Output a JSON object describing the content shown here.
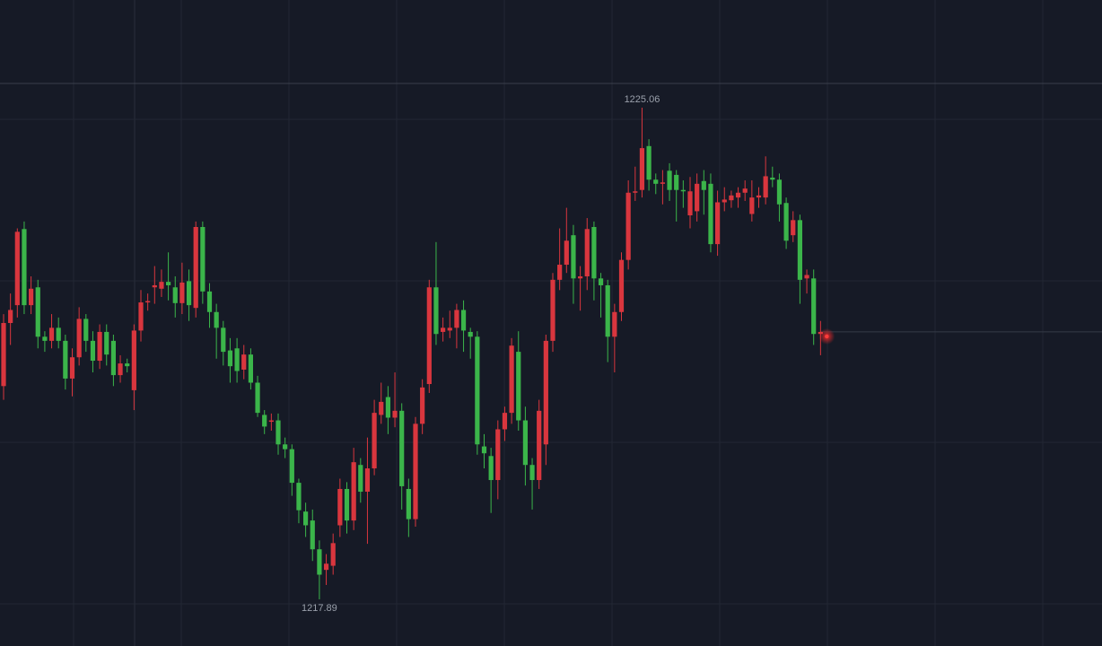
{
  "chart_data": {
    "type": "candlestick",
    "ylim": [
      1217.21,
      1226.63
    ],
    "grid": true,
    "up_color": "#d9363e",
    "down_color": "#3bb54a",
    "open": [
      1221.0,
      1221.92,
      1222.18,
      1223.29,
      1222.18,
      1222.44,
      1221.72,
      1221.66,
      1221.85,
      1221.66,
      1221.11,
      1221.42,
      1221.98,
      1221.66,
      1221.37,
      1221.79,
      1221.66,
      1221.16,
      1221.33,
      1220.94,
      1221.81,
      1222.22,
      1222.44,
      1222.42,
      1222.52,
      1222.44,
      1222.21,
      1222.53,
      1222.14,
      1223.32,
      1222.38,
      1222.08,
      1221.85,
      1221.52,
      1221.55,
      1221.24,
      1221.46,
      1221.05,
      1220.58,
      1220.48,
      1220.5,
      1220.15,
      1220.08,
      1219.59,
      1219.17,
      1219.04,
      1218.62,
      1218.32,
      1218.38,
      1218.97,
      1219.5,
      1219.04,
      1219.85,
      1219.46,
      1219.8,
      1220.58,
      1220.84,
      1220.54,
      1220.64,
      1219.5,
      1219.06,
      1220.45,
      1221.03,
      1222.44,
      1221.79,
      1221.81,
      1221.85,
      1222.11,
      1221.79,
      1221.72,
      1220.12,
      1219.98,
      1219.63,
      1220.37,
      1220.61,
      1221.5,
      1220.5,
      1219.85,
      1219.63,
      1220.15,
      1221.66,
      1222.55,
      1222.77,
      1223.2,
      1222.57,
      1222.6,
      1223.32,
      1222.57,
      1222.47,
      1221.72,
      1222.08,
      1222.84,
      1223.82,
      1223.86,
      1224.5,
      1224.01,
      1223.95,
      1224.14,
      1224.08,
      1223.86,
      1223.49,
      1223.55,
      1223.99,
      1223.95,
      1223.07,
      1223.68,
      1223.71,
      1223.75,
      1223.82,
      1223.51,
      1223.75,
      1223.75,
      1224.04,
      1224.01,
      1223.67,
      1223.2,
      1223.42,
      1222.57,
      1222.57,
      1221.76
    ],
    "high": [
      1222.05,
      1222.35,
      1223.3,
      1223.4,
      1222.6,
      1222.55,
      1221.8,
      1222.05,
      1222.0,
      1221.75,
      1221.55,
      1222.15,
      1222.05,
      1221.8,
      1221.9,
      1221.9,
      1221.75,
      1221.45,
      1221.4,
      1221.9,
      1222.4,
      1222.35,
      1222.75,
      1222.7,
      1222.95,
      1222.6,
      1222.8,
      1222.7,
      1223.4,
      1223.4,
      1222.5,
      1222.2,
      1221.95,
      1221.7,
      1221.7,
      1221.6,
      1221.55,
      1221.15,
      1220.65,
      1220.6,
      1220.6,
      1220.25,
      1220.15,
      1219.65,
      1219.3,
      1219.2,
      1218.75,
      1218.55,
      1218.85,
      1219.65,
      1219.6,
      1220.1,
      1219.95,
      1220.25,
      1220.8,
      1221.05,
      1221.0,
      1221.2,
      1220.75,
      1219.65,
      1220.55,
      1221.1,
      1222.55,
      1223.1,
      1222.0,
      1222.1,
      1222.2,
      1222.25,
      1221.85,
      1221.8,
      1220.3,
      1220.1,
      1220.5,
      1220.7,
      1221.7,
      1221.8,
      1220.7,
      1219.95,
      1220.8,
      1221.75,
      1222.65,
      1223.3,
      1223.6,
      1223.35,
      1222.75,
      1223.45,
      1223.4,
      1222.65,
      1222.55,
      1222.2,
      1222.95,
      1224.0,
      1224.2,
      1225.06,
      1224.6,
      1224.1,
      1224.15,
      1224.25,
      1224.15,
      1224.0,
      1224.05,
      1224.1,
      1224.15,
      1224.1,
      1223.85,
      1223.9,
      1223.85,
      1223.9,
      1224.0,
      1224.0,
      1223.9,
      1224.35,
      1224.2,
      1224.1,
      1223.75,
      1223.55,
      1223.5,
      1222.7,
      1222.7,
      1221.95
    ],
    "low": [
      1220.8,
      1221.6,
      1222.0,
      1222.05,
      1222.05,
      1221.55,
      1221.5,
      1221.55,
      1221.55,
      1220.95,
      1220.85,
      1221.3,
      1221.5,
      1221.2,
      1221.25,
      1221.3,
      1221.0,
      1221.05,
      1221.2,
      1220.65,
      1221.65,
      1222.1,
      1222.2,
      1222.3,
      1222.25,
      1222.0,
      1222.05,
      1221.95,
      1222.0,
      1222.2,
      1221.85,
      1221.4,
      1221.3,
      1221.05,
      1221.05,
      1221.1,
      1220.95,
      1220.55,
      1220.3,
      1220.35,
      1220.0,
      1219.95,
      1219.4,
      1219.0,
      1218.8,
      1218.45,
      1217.89,
      1218.1,
      1218.25,
      1218.8,
      1218.85,
      1218.9,
      1219.3,
      1218.7,
      1219.7,
      1220.45,
      1220.3,
      1220.4,
      1219.2,
      1218.8,
      1218.95,
      1220.3,
      1220.9,
      1221.6,
      1221.65,
      1221.7,
      1221.55,
      1221.5,
      1221.4,
      1220.0,
      1219.8,
      1219.15,
      1219.35,
      1220.2,
      1220.45,
      1220.35,
      1219.55,
      1219.2,
      1219.5,
      1219.85,
      1221.5,
      1222.4,
      1222.65,
      1222.2,
      1222.1,
      1222.4,
      1222.25,
      1222.0,
      1221.35,
      1221.2,
      1221.95,
      1222.7,
      1223.7,
      1223.75,
      1223.85,
      1223.8,
      1223.65,
      1223.7,
      1223.4,
      1223.6,
      1223.3,
      1223.4,
      1223.5,
      1222.95,
      1222.9,
      1223.55,
      1223.6,
      1223.6,
      1223.7,
      1223.4,
      1223.6,
      1223.65,
      1223.9,
      1223.4,
      1223.0,
      1223.1,
      1222.2,
      1222.35,
      1221.6,
      1221.45
    ],
    "close": [
      1221.92,
      1222.11,
      1223.25,
      1222.18,
      1222.42,
      1221.72,
      1221.66,
      1221.85,
      1221.66,
      1221.11,
      1221.42,
      1221.98,
      1221.66,
      1221.37,
      1221.79,
      1221.46,
      1221.16,
      1221.33,
      1221.29,
      1221.81,
      1222.22,
      1222.24,
      1222.47,
      1222.52,
      1222.47,
      1222.21,
      1222.51,
      1222.18,
      1223.32,
      1222.38,
      1222.08,
      1221.85,
      1221.5,
      1221.29,
      1221.22,
      1221.46,
      1221.05,
      1220.61,
      1220.41,
      1220.5,
      1220.15,
      1220.08,
      1219.59,
      1219.19,
      1218.97,
      1218.62,
      1218.25,
      1218.41,
      1218.71,
      1219.5,
      1219.04,
      1219.89,
      1219.46,
      1219.8,
      1220.61,
      1220.77,
      1220.54,
      1220.64,
      1219.54,
      1219.06,
      1220.45,
      1220.98,
      1222.44,
      1221.76,
      1221.85,
      1221.85,
      1222.11,
      1221.81,
      1221.72,
      1220.15,
      1220.02,
      1219.63,
      1220.37,
      1220.61,
      1221.59,
      1220.5,
      1219.85,
      1219.63,
      1220.64,
      1221.66,
      1222.55,
      1222.77,
      1223.12,
      1222.57,
      1222.6,
      1223.29,
      1222.57,
      1222.47,
      1221.72,
      1222.08,
      1222.84,
      1223.82,
      1223.84,
      1224.47,
      1224.01,
      1223.95,
      1223.97,
      1223.86,
      1223.86,
      1223.84,
      1223.84,
      1223.95,
      1223.86,
      1223.07,
      1223.68,
      1223.72,
      1223.78,
      1223.82,
      1223.88,
      1223.75,
      1223.78,
      1224.06,
      1224.01,
      1223.65,
      1223.12,
      1223.42,
      1222.55,
      1222.62,
      1221.76,
      1221.79
    ]
  }
}
